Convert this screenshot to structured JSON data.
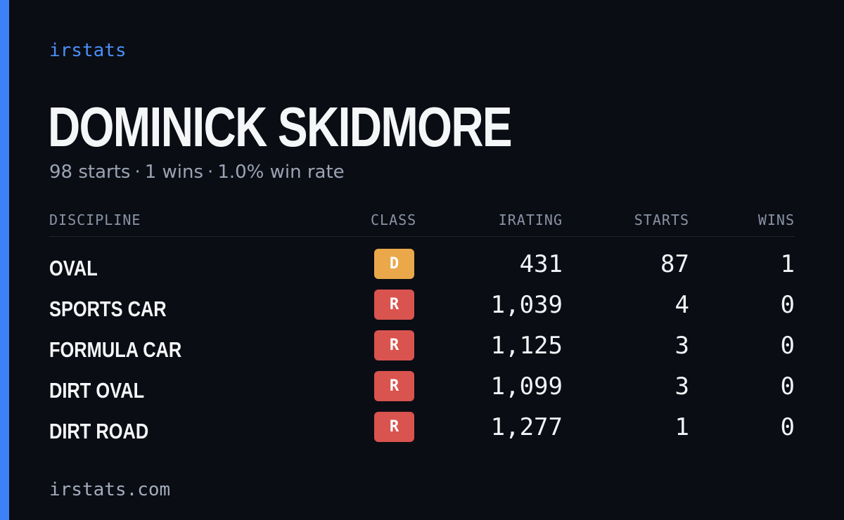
{
  "brand": "irstats",
  "accent_color": "#3b82f6",
  "player": {
    "name": "DOMINICK SKIDMORE",
    "starts_text": "98 starts",
    "wins_text": "1 wins",
    "win_rate_text": "1.0% win rate",
    "separator": "·"
  },
  "table": {
    "headers": {
      "discipline": "DISCIPLINE",
      "class": "CLASS",
      "irating": "IRATING",
      "starts": "STARTS",
      "wins": "WINS"
    },
    "rows": [
      {
        "discipline": "OVAL",
        "class": "D",
        "class_color": "#eaa84a",
        "irating": "431",
        "starts": "87",
        "wins": "1"
      },
      {
        "discipline": "SPORTS CAR",
        "class": "R",
        "class_color": "#d9534f",
        "irating": "1,039",
        "starts": "4",
        "wins": "0"
      },
      {
        "discipline": "FORMULA CAR",
        "class": "R",
        "class_color": "#d9534f",
        "irating": "1,125",
        "starts": "3",
        "wins": "0"
      },
      {
        "discipline": "DIRT OVAL",
        "class": "R",
        "class_color": "#d9534f",
        "irating": "1,099",
        "starts": "3",
        "wins": "0"
      },
      {
        "discipline": "DIRT ROAD",
        "class": "R",
        "class_color": "#d9534f",
        "irating": "1,277",
        "starts": "1",
        "wins": "0"
      }
    ]
  },
  "footer": "irstats.com"
}
